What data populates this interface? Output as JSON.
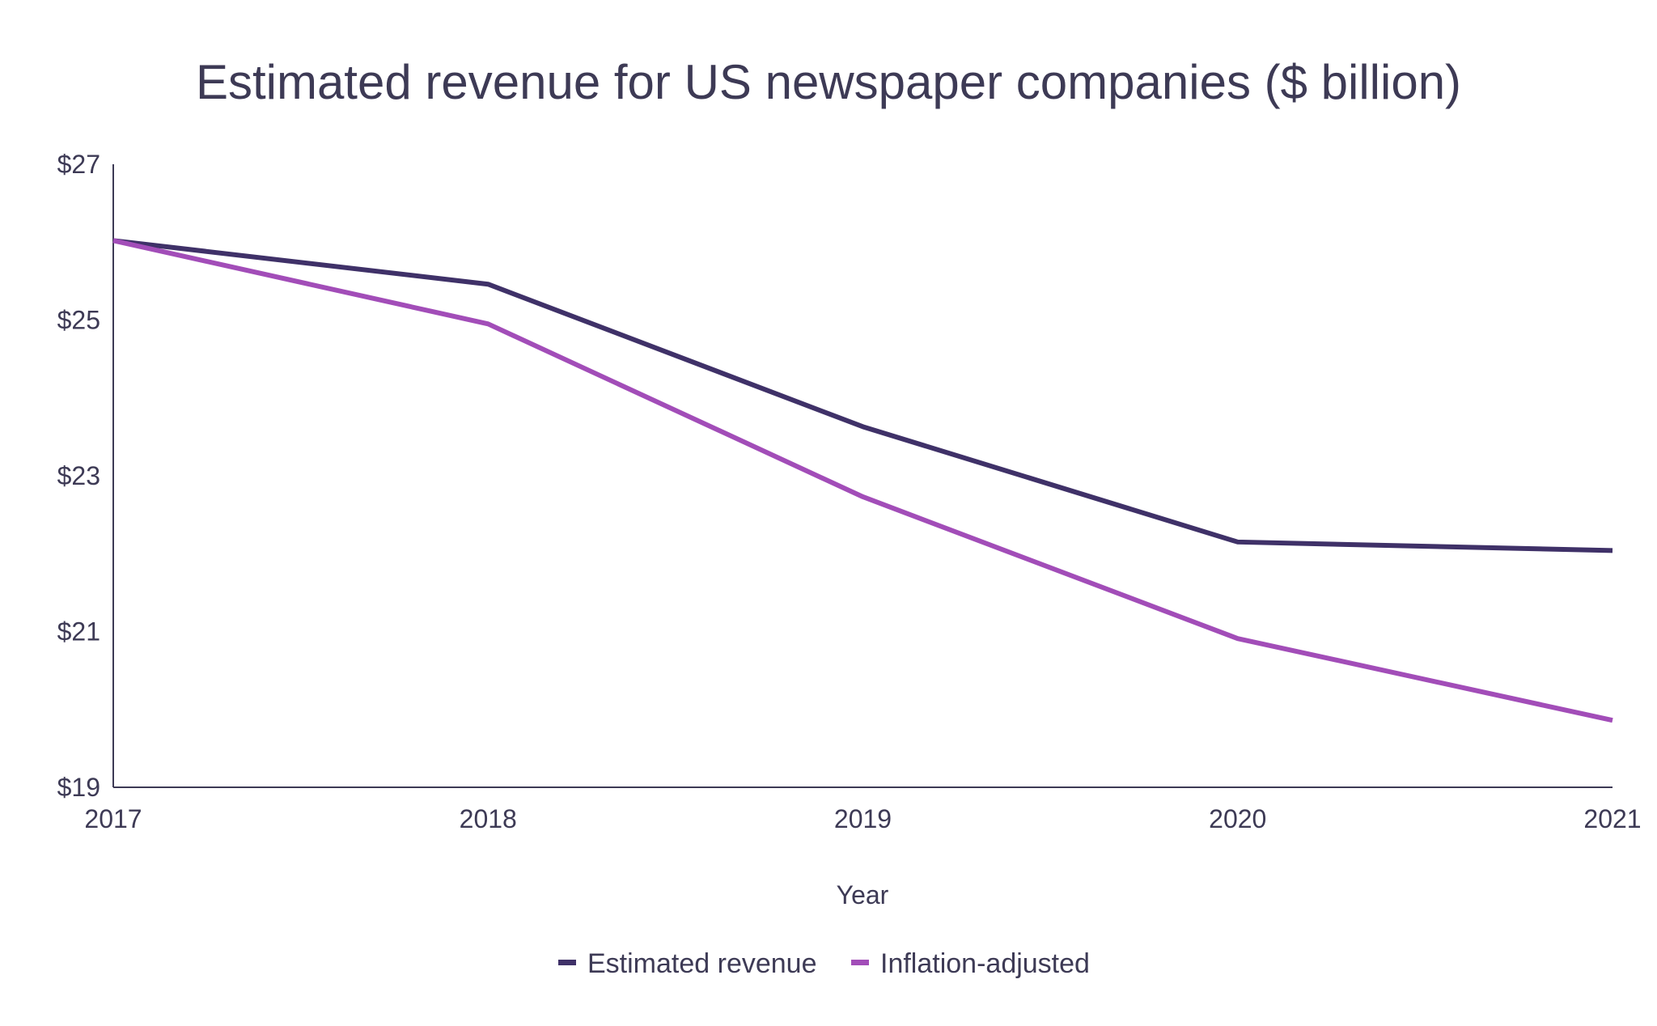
{
  "chart_data": {
    "type": "line",
    "title": "Estimated revenue for US newspaper companies ($ billion)",
    "xlabel": "Year",
    "ylabel": "",
    "x": [
      "2017",
      "2018",
      "2019",
      "2020",
      "2021"
    ],
    "ylim": [
      19,
      27
    ],
    "yticks": [
      19,
      21,
      23,
      25,
      27
    ],
    "ytick_labels": [
      "$19",
      "$21",
      "$23",
      "$25",
      "$27"
    ],
    "grid": false,
    "legend_position": "bottom",
    "series": [
      {
        "name": "Estimated revenue",
        "color": "#3f3168",
        "values": [
          26.02,
          25.46,
          23.63,
          22.15,
          22.04
        ]
      },
      {
        "name": "Inflation-adjusted",
        "color": "#a24db8",
        "values": [
          26.02,
          24.95,
          22.73,
          20.91,
          19.86
        ]
      }
    ]
  }
}
